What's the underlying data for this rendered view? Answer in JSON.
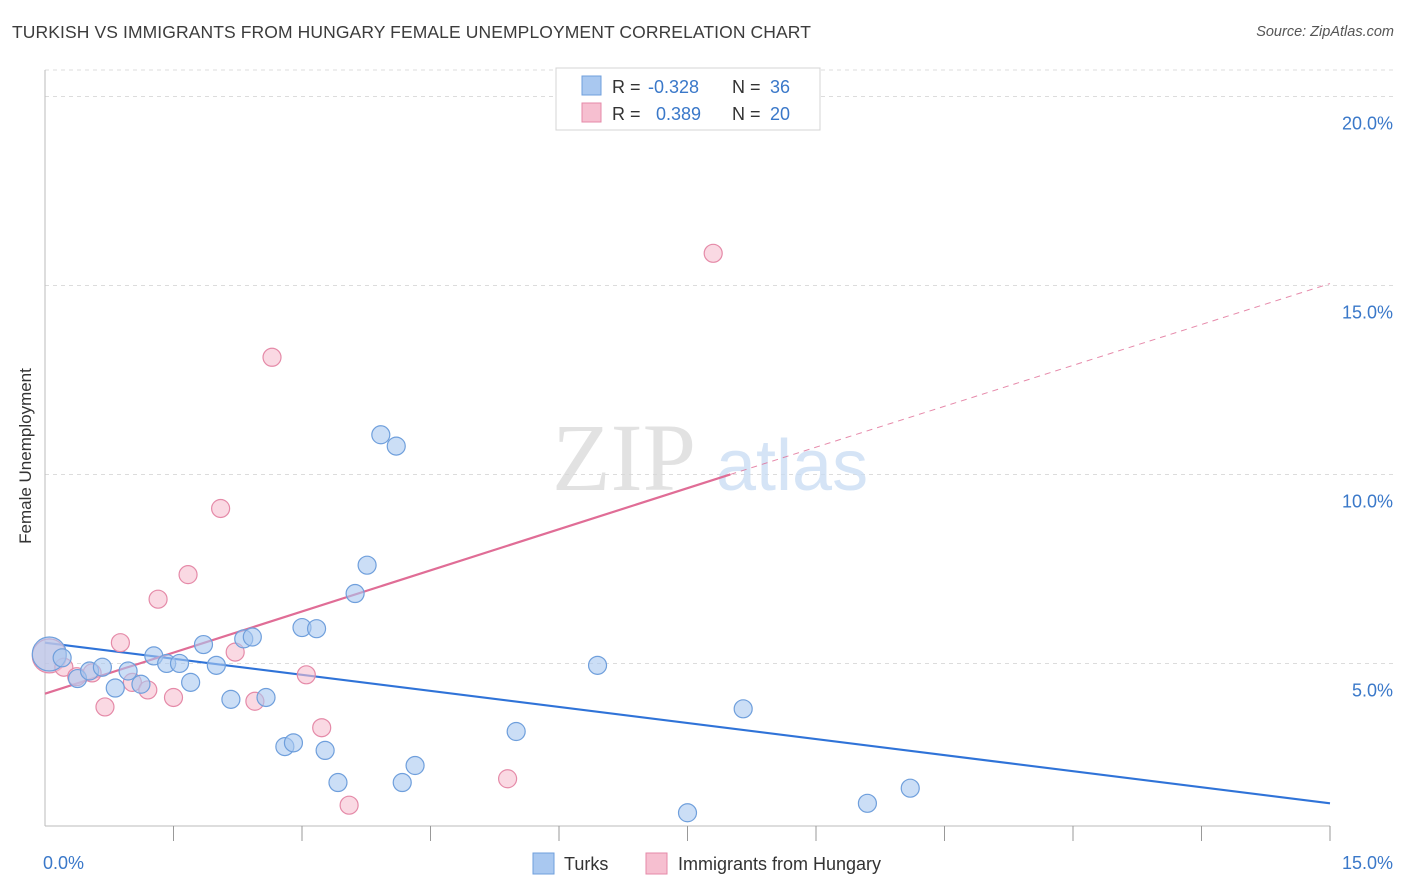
{
  "header": {
    "title": "TURKISH VS IMMIGRANTS FROM HUNGARY FEMALE UNEMPLOYMENT CORRELATION CHART",
    "source": "Source: ZipAtlas.com"
  },
  "colors": {
    "turks_fill": "#a9c8f0",
    "turks_stroke": "#6f9fdc",
    "turks_line": "#2f73d8",
    "hungary_fill": "#f6bfd0",
    "hungary_stroke": "#e58aa8",
    "hungary_line": "#e06d96",
    "axis_text": "#3a78c9",
    "grid": "#dcdcdc"
  },
  "legend_top": {
    "rows": [
      {
        "r_label": "R =",
        "r_value": "-0.328",
        "n_label": "N =",
        "n_value": "36"
      },
      {
        "r_label": "R =",
        "r_value": "0.389",
        "n_label": "N =",
        "n_value": "20"
      }
    ]
  },
  "watermark": {
    "zip": "ZIP",
    "atlas": "atlas"
  },
  "chart_data": {
    "type": "scatter",
    "title": "TURKISH VS IMMIGRANTS FROM HUNGARY FEMALE UNEMPLOYMENT CORRELATION CHART",
    "xlabel": "",
    "ylabel": "Female Unemployment",
    "xlim": [
      0,
      15
    ],
    "ylim": [
      0.7,
      20.7
    ],
    "x_tick_labels": [
      {
        "value": 0,
        "label": "0.0%"
      },
      {
        "value": 15,
        "label": "15.0%"
      }
    ],
    "y_tick_labels": [
      {
        "value": 5,
        "label": "5.0%"
      },
      {
        "value": 10,
        "label": "10.0%"
      },
      {
        "value": 15,
        "label": "15.0%"
      },
      {
        "value": 20,
        "label": "20.0%"
      }
    ],
    "x_minor_ticks": [
      1.5,
      3.0,
      4.5,
      6.0,
      7.5,
      9.0,
      10.5,
      12.0,
      13.5,
      15.0
    ],
    "legend_position": "bottom-center",
    "series": [
      {
        "name": "Turks",
        "r": -0.328,
        "n": 36,
        "trend": {
          "x1": 0.0,
          "y1": 5.55,
          "x2": 15.0,
          "y2": 1.3
        },
        "points": [
          {
            "x": 0.05,
            "y": 5.25,
            "big": true
          },
          {
            "x": 0.2,
            "y": 5.15
          },
          {
            "x": 0.38,
            "y": 4.6
          },
          {
            "x": 0.52,
            "y": 4.8
          },
          {
            "x": 0.67,
            "y": 4.9
          },
          {
            "x": 0.82,
            "y": 4.35
          },
          {
            "x": 0.97,
            "y": 4.8
          },
          {
            "x": 1.12,
            "y": 4.45
          },
          {
            "x": 1.27,
            "y": 5.2
          },
          {
            "x": 1.42,
            "y": 5.0
          },
          {
            "x": 1.57,
            "y": 5.0
          },
          {
            "x": 1.7,
            "y": 4.5
          },
          {
            "x": 1.85,
            "y": 5.5
          },
          {
            "x": 2.0,
            "y": 4.95
          },
          {
            "x": 2.17,
            "y": 4.05
          },
          {
            "x": 2.32,
            "y": 5.65
          },
          {
            "x": 2.42,
            "y": 5.7
          },
          {
            "x": 2.58,
            "y": 4.1
          },
          {
            "x": 2.8,
            "y": 2.8
          },
          {
            "x": 2.9,
            "y": 2.9
          },
          {
            "x": 3.0,
            "y": 5.95
          },
          {
            "x": 3.17,
            "y": 5.92
          },
          {
            "x": 3.27,
            "y": 2.7
          },
          {
            "x": 3.42,
            "y": 1.85
          },
          {
            "x": 3.62,
            "y": 6.85
          },
          {
            "x": 3.76,
            "y": 7.6
          },
          {
            "x": 3.92,
            "y": 11.05
          },
          {
            "x": 4.1,
            "y": 10.75
          },
          {
            "x": 4.17,
            "y": 1.85
          },
          {
            "x": 4.32,
            "y": 2.3
          },
          {
            "x": 5.5,
            "y": 3.2
          },
          {
            "x": 6.45,
            "y": 4.95
          },
          {
            "x": 7.5,
            "y": 1.05
          },
          {
            "x": 8.15,
            "y": 3.8
          },
          {
            "x": 9.6,
            "y": 1.3
          },
          {
            "x": 10.1,
            "y": 1.7
          }
        ]
      },
      {
        "name": "Immigrants from Hungary",
        "r": 0.389,
        "n": 20,
        "trend": {
          "x1": 0.0,
          "y1": 4.2,
          "x2": 8.0,
          "y2": 10.0,
          "dashed_to": {
            "x": 15.0,
            "y": 15.05
          }
        },
        "points": [
          {
            "x": 0.05,
            "y": 5.2,
            "big": true
          },
          {
            "x": 0.22,
            "y": 4.9
          },
          {
            "x": 0.37,
            "y": 4.65
          },
          {
            "x": 0.55,
            "y": 4.75
          },
          {
            "x": 0.7,
            "y": 3.85
          },
          {
            "x": 0.88,
            "y": 5.55
          },
          {
            "x": 1.02,
            "y": 4.5
          },
          {
            "x": 1.2,
            "y": 4.3
          },
          {
            "x": 1.32,
            "y": 6.7
          },
          {
            "x": 1.5,
            "y": 4.1
          },
          {
            "x": 1.67,
            "y": 7.35
          },
          {
            "x": 2.05,
            "y": 9.1
          },
          {
            "x": 2.22,
            "y": 5.3
          },
          {
            "x": 2.45,
            "y": 4.0
          },
          {
            "x": 2.65,
            "y": 13.1
          },
          {
            "x": 3.05,
            "y": 4.7
          },
          {
            "x": 3.23,
            "y": 3.3
          },
          {
            "x": 3.55,
            "y": 1.25
          },
          {
            "x": 5.4,
            "y": 1.95
          },
          {
            "x": 7.8,
            "y": 15.85
          }
        ]
      }
    ]
  }
}
